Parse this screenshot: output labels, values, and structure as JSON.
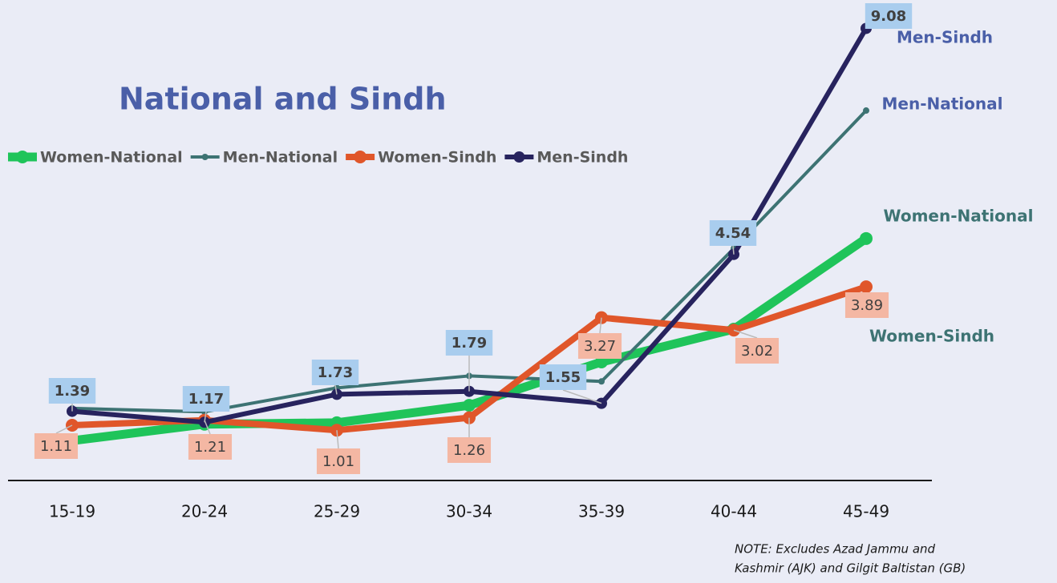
{
  "chart_data": {
    "type": "line",
    "title": "National and Sindh",
    "categories": [
      "15-19",
      "20-24",
      "25-29",
      "30-34",
      "35-39",
      "40-44",
      "45-49"
    ],
    "series": [
      {
        "name": "Women-National",
        "color": "#1fc45a",
        "values": [
          0.8,
          1.13,
          1.16,
          1.51,
          2.38,
          3.04,
          4.86
        ]
      },
      {
        "name": "Men-National",
        "color": "#3d7373",
        "values": [
          1.45,
          1.38,
          1.86,
          2.1,
          1.99,
          4.66,
          7.43
        ]
      },
      {
        "name": "Women-Sindh",
        "color": "#e0562a",
        "values": [
          1.11,
          1.21,
          1.01,
          1.26,
          3.27,
          3.02,
          3.89
        ]
      },
      {
        "name": "Men-Sindh",
        "color": "#27235e",
        "values": [
          1.39,
          1.17,
          1.73,
          1.79,
          1.55,
          4.54,
          9.08
        ]
      }
    ],
    "ylim": [
      0,
      9.65
    ],
    "legend": "top-left",
    "note": [
      "NOTE: Excludes Azad Jammu and",
      "Kashmir (AJK) and Gilgit Baltistan (GB)"
    ]
  }
}
